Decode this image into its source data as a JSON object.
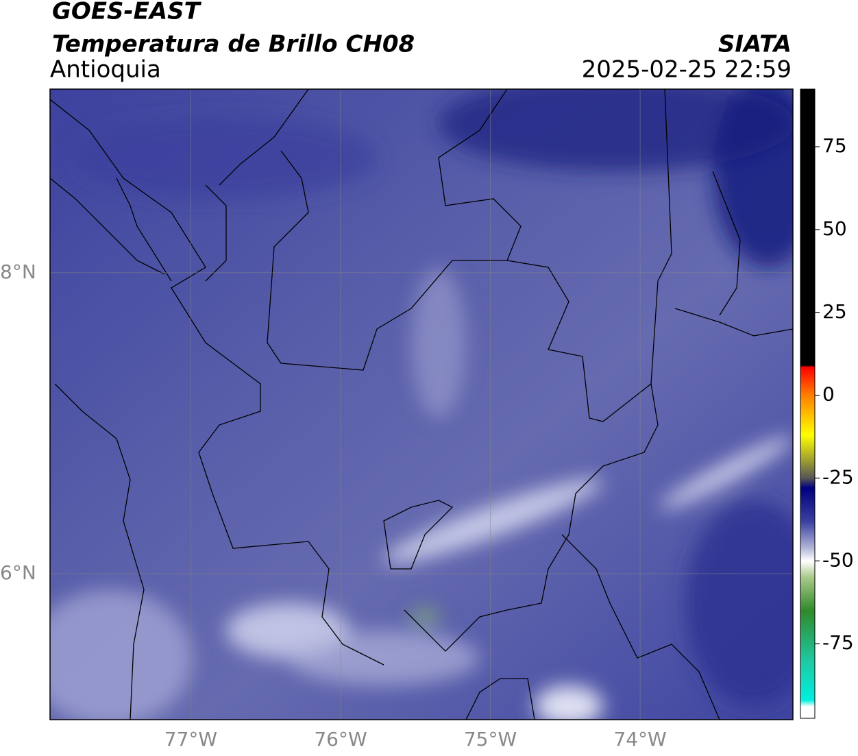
{
  "header": {
    "satellite": "GOES-EAST",
    "product": "Temperatura de Brillo CH08",
    "region": "Antioquia",
    "source": "SIATA",
    "datetime": "2025-02-25 22:59"
  },
  "map": {
    "xlim": [
      -77.94,
      -72.98
    ],
    "ylim": [
      5.03,
      9.22
    ],
    "xticks": [
      {
        "value": -77,
        "label": "77°W"
      },
      {
        "value": -76,
        "label": "76°W"
      },
      {
        "value": -75,
        "label": "75°W"
      },
      {
        "value": -74,
        "label": "74°W"
      }
    ],
    "yticks": [
      {
        "value": 6,
        "label": "6°N"
      },
      {
        "value": 8,
        "label": "8°N"
      }
    ],
    "grid": true
  },
  "colorbar": {
    "ylim": [
      -97.5,
      92.4
    ],
    "yticks": [
      -75,
      -50,
      -25,
      0,
      25,
      50,
      75
    ],
    "stops": [
      {
        "value": 92.4,
        "color": "#000000"
      },
      {
        "value": 9,
        "color": "#000000"
      },
      {
        "value": 8.5,
        "color": "#ff0000"
      },
      {
        "value": 0,
        "color": "#ff7f00"
      },
      {
        "value": -12,
        "color": "#ffff00"
      },
      {
        "value": -20,
        "color": "#999933"
      },
      {
        "value": -25,
        "color": "#555555"
      },
      {
        "value": -28,
        "color": "#00007f"
      },
      {
        "value": -38,
        "color": "#3a3fa0"
      },
      {
        "value": -46,
        "color": "#b0b4d8"
      },
      {
        "value": -50,
        "color": "#ffffff"
      },
      {
        "value": -55,
        "color": "#a9c98a"
      },
      {
        "value": -65,
        "color": "#2f8a2a"
      },
      {
        "value": -80,
        "color": "#1fc8a0"
      },
      {
        "value": -92,
        "color": "#00f0e0"
      },
      {
        "value": -94,
        "color": "#ffffff"
      },
      {
        "value": -97.5,
        "color": "#ffffff"
      }
    ]
  }
}
